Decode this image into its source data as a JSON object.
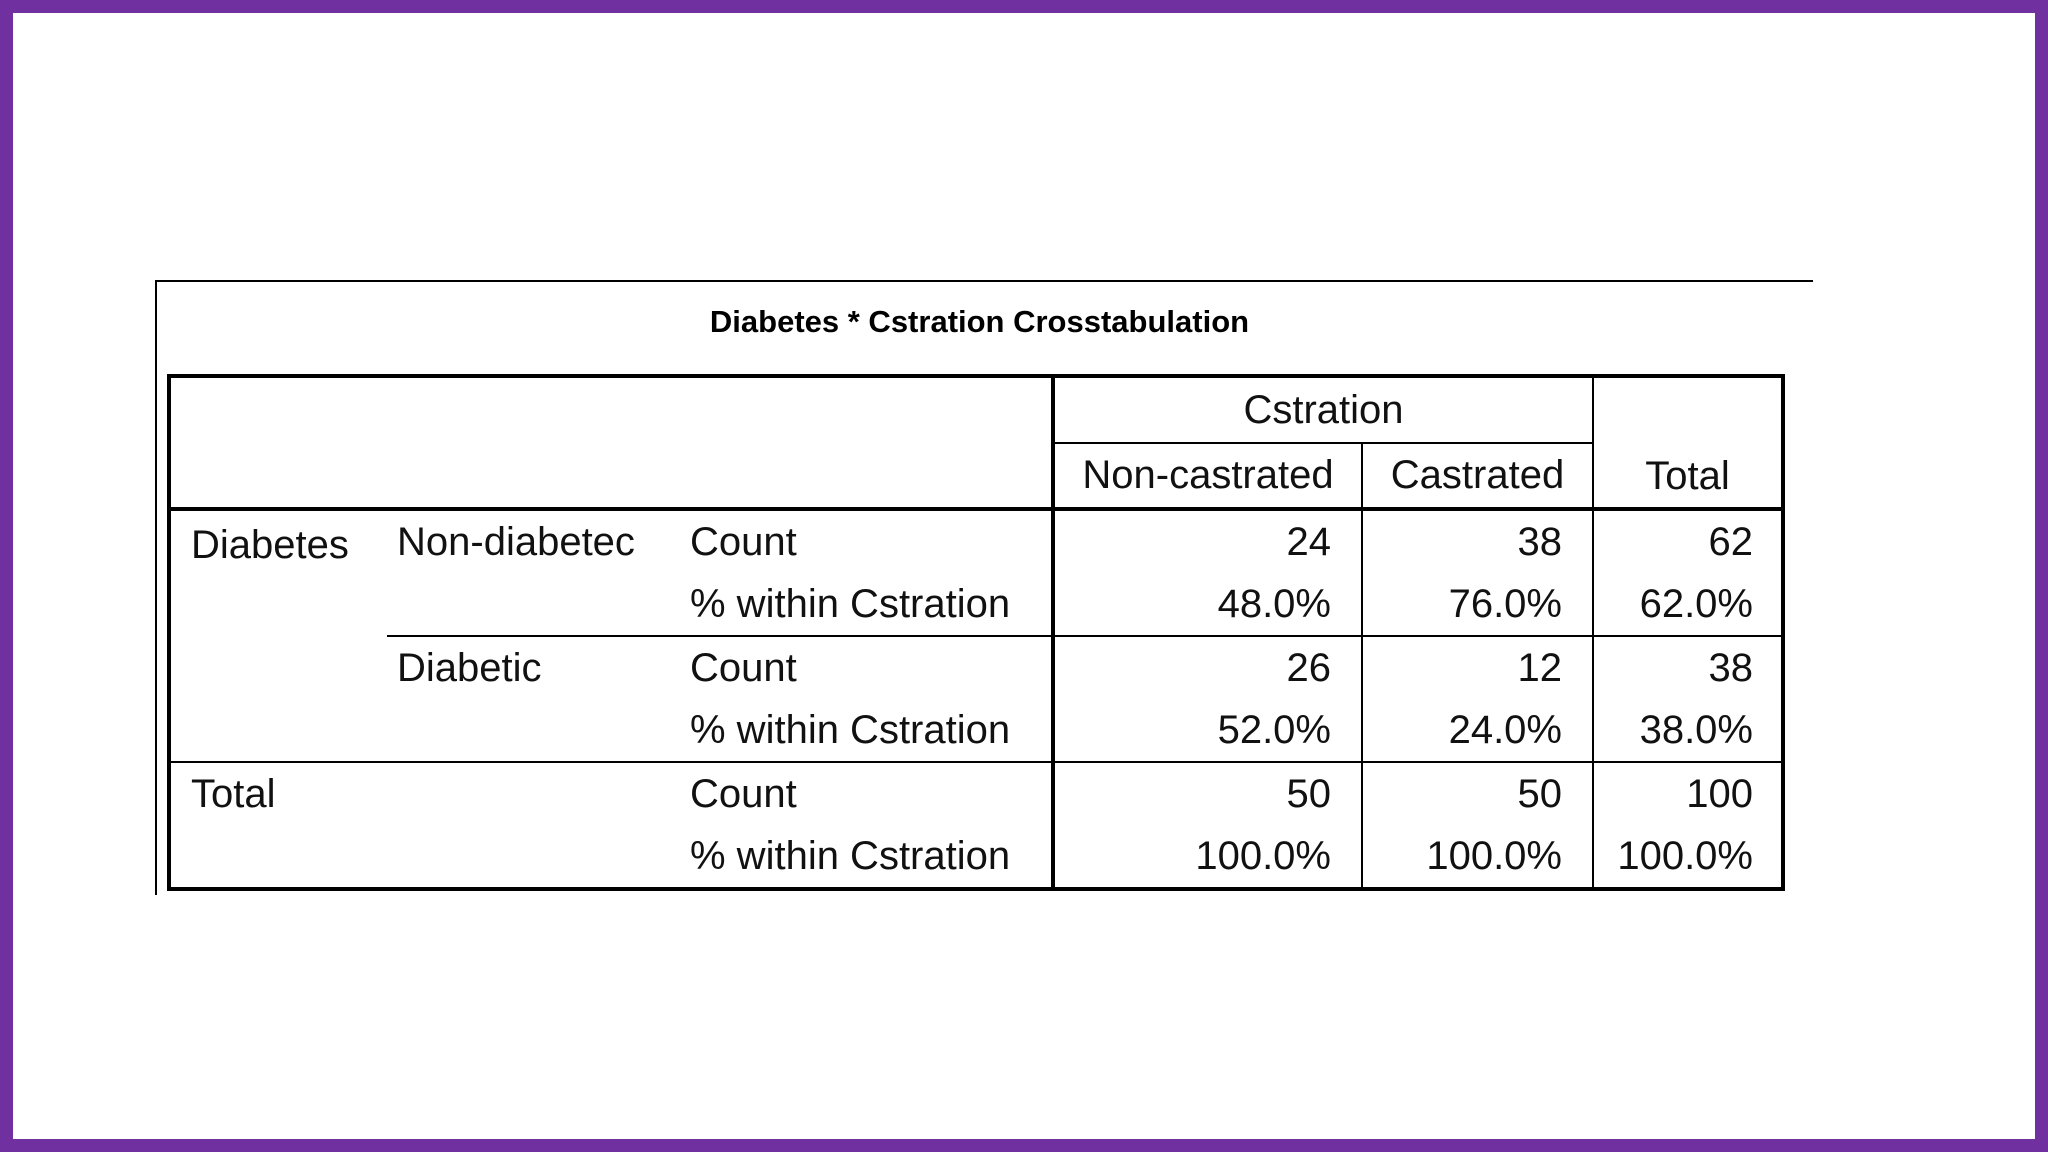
{
  "table": {
    "title": "Diabetes * Cstration Crosstabulation",
    "column_group": "Cstration",
    "columns": [
      "Non-castrated",
      "Castrated"
    ],
    "total_col": "Total",
    "row_var": "Diabetes",
    "stat_count": "Count",
    "stat_pct": "% within Cstration",
    "groups": [
      {
        "label": "Non-diabetec",
        "count": [
          "24",
          "38",
          "62"
        ],
        "pct": [
          "48.0%",
          "76.0%",
          "62.0%"
        ]
      },
      {
        "label": "Diabetic",
        "count": [
          "26",
          "12",
          "38"
        ],
        "pct": [
          "52.0%",
          "24.0%",
          "38.0%"
        ]
      }
    ],
    "total": {
      "label": "Total",
      "count": [
        "50",
        "50",
        "100"
      ],
      "pct": [
        "100.0%",
        "100.0%",
        "100.0%"
      ]
    }
  },
  "colors": {
    "frame": "#7030A0",
    "background": "#ffffff",
    "lines": "#000000"
  }
}
